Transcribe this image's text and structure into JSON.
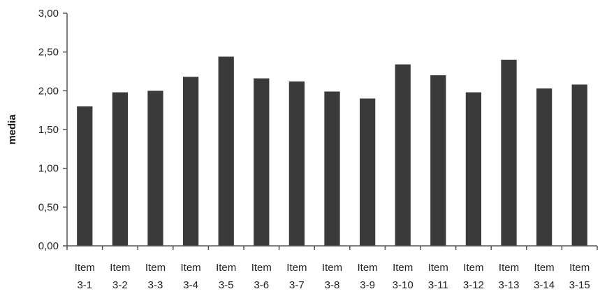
{
  "chart_data": {
    "type": "bar",
    "title": "",
    "xlabel": "",
    "ylabel": "media",
    "ylim": [
      0,
      3
    ],
    "yticks": [
      "0,00",
      "0,50",
      "1,00",
      "1,50",
      "2,00",
      "2,50",
      "3,00"
    ],
    "ytick_values": [
      0,
      0.5,
      1,
      1.5,
      2,
      2.5,
      3
    ],
    "categories": [
      [
        "Item",
        "3-1"
      ],
      [
        "Item",
        "3-2"
      ],
      [
        "Item",
        "3-3"
      ],
      [
        "Item",
        "3-4"
      ],
      [
        "Item",
        "3-5"
      ],
      [
        "Item",
        "3-6"
      ],
      [
        "Item",
        "3-7"
      ],
      [
        "Item",
        "3-8"
      ],
      [
        "Item",
        "3-9"
      ],
      [
        "Item",
        "3-10"
      ],
      [
        "Item",
        "3-11"
      ],
      [
        "Item",
        "3-12"
      ],
      [
        "Item",
        "3-13"
      ],
      [
        "Item",
        "3-14"
      ],
      [
        "Item",
        "3-15"
      ]
    ],
    "values": [
      1.8,
      1.98,
      2.0,
      2.18,
      2.44,
      2.16,
      2.12,
      1.99,
      1.9,
      2.34,
      2.2,
      1.98,
      2.4,
      2.03,
      2.08
    ],
    "grid": false,
    "legend": "none",
    "bar_color": "#3a3a3a",
    "axis_color": "#555555"
  }
}
